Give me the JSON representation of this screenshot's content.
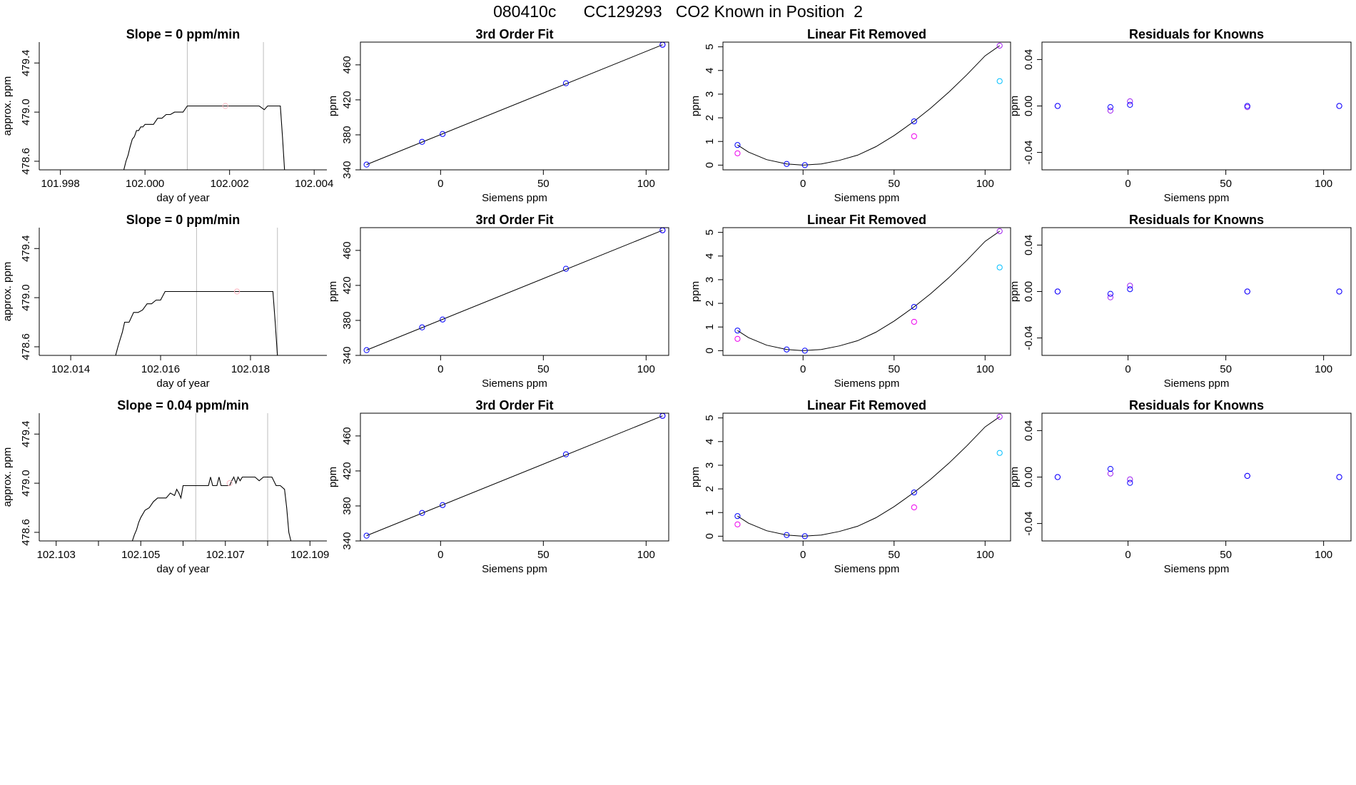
{
  "figure": {
    "title": "080410c      CC129293   CO2 Known in Position  2"
  },
  "colors": {
    "axis": "#000000",
    "trace": "#000000",
    "window_line": "#bebebe",
    "fit_line": "#000000",
    "known_point": "#0000ff",
    "residual_point": "#a020f0",
    "point_magenta": "#ee00ee",
    "point_cyan": "#00bfff",
    "mean_point_light": "#ffb6c1"
  },
  "chart_data": [
    {
      "type": "line",
      "row": 0,
      "col": 0,
      "title": "Slope =  0  ppm/min",
      "xlabel": "day of year",
      "ylabel": "approx. ppm",
      "xlim": [
        101.9975,
        102.0043
      ],
      "ylim": [
        478.53,
        479.57
      ],
      "xticks": [
        101.998,
        102.0,
        102.002,
        102.004
      ],
      "xtick_labels": [
        "101.998",
        "102.000",
        "102.002",
        "102.004"
      ],
      "yticks": [
        478.6,
        479.0,
        479.4
      ],
      "ytick_labels": [
        "478.6",
        "479.0",
        "479.4"
      ],
      "series": [
        {
          "x": [
            101.9995,
            101.99955,
            101.9996,
            101.99965,
            101.9997,
            101.99975,
            101.9998,
            101.99985,
            101.9999,
            101.99995,
            102.0,
            102.0001,
            102.0002,
            102.0003,
            102.0004,
            102.0005,
            102.0006,
            102.0007,
            102.0009,
            102.001,
            102.0011,
            102.002,
            102.0027,
            102.00282,
            102.0029,
            102.0032,
            102.00325,
            102.0033
          ],
          "y": [
            478.53,
            478.6,
            478.65,
            478.72,
            478.78,
            478.8,
            478.85,
            478.85,
            478.88,
            478.88,
            478.9,
            478.9,
            478.9,
            478.95,
            478.95,
            478.98,
            478.98,
            479.0,
            479.0,
            479.05,
            479.05,
            479.05,
            479.05,
            479.02,
            479.05,
            479.05,
            478.8,
            478.53
          ]
        }
      ],
      "vlines": [
        102.001,
        102.0028
      ],
      "mean_point": {
        "x": 102.0019,
        "y": 479.05
      }
    },
    {
      "type": "scatter",
      "row": 0,
      "col": 1,
      "title": "3rd Order Fit",
      "xlabel": "Siemens ppm",
      "ylabel": "ppm",
      "xlim": [
        -39,
        111
      ],
      "ylim": [
        340,
        486
      ],
      "xticks": [
        0,
        50,
        100
      ],
      "xtick_labels": [
        "0",
        "50",
        "100"
      ],
      "yticks": [
        340,
        380,
        420,
        460
      ],
      "ytick_labels": [
        "340",
        "380",
        "420",
        "460"
      ],
      "fit_line": {
        "x": [
          -36,
          108
        ],
        "y": [
          346,
          483
        ]
      },
      "known_points": {
        "x": [
          -36,
          -9,
          1,
          61,
          108
        ],
        "y": [
          346,
          372,
          381,
          439,
          483
        ]
      },
      "residual_points": {
        "x": [
          108
        ],
        "y": [
          483
        ]
      }
    },
    {
      "type": "scatter",
      "row": 0,
      "col": 2,
      "title": "Linear Fit Removed",
      "xlabel": "Siemens ppm",
      "ylabel": "ppm",
      "xlim": [
        -44,
        114
      ],
      "ylim": [
        -0.2,
        5.2
      ],
      "xticks": [
        0,
        50,
        100
      ],
      "xtick_labels": [
        "0",
        "50",
        "100"
      ],
      "yticks": [
        0,
        1,
        2,
        3,
        4,
        5
      ],
      "ytick_labels": [
        "0",
        "1",
        "2",
        "3",
        "4",
        "5"
      ],
      "fit_line": {
        "x": [
          -36,
          -30,
          -20,
          -9,
          0,
          10,
          20,
          30,
          40,
          50,
          61,
          70,
          80,
          90,
          100,
          108
        ],
        "y": [
          0.85,
          0.55,
          0.23,
          0.05,
          0.0,
          0.05,
          0.2,
          0.42,
          0.78,
          1.25,
          1.85,
          2.4,
          3.08,
          3.82,
          4.62,
          5.05
        ]
      },
      "known_points": {
        "x": [
          -36,
          -9,
          1,
          61
        ],
        "y": [
          0.85,
          0.05,
          0.0,
          1.85
        ]
      },
      "magenta_points": {
        "x": [
          -36,
          61
        ],
        "y": [
          0.5,
          1.22
        ]
      },
      "purple_points": {
        "x": [
          108
        ],
        "y": [
          5.05
        ]
      },
      "cyan_points": {
        "x": [
          108
        ],
        "y": [
          3.55
        ]
      }
    },
    {
      "type": "scatter",
      "row": 0,
      "col": 3,
      "title": "Residuals for Knowns",
      "xlabel": "Siemens ppm",
      "ylabel": "ppm",
      "xlim": [
        -44,
        114
      ],
      "ylim": [
        -0.055,
        0.055
      ],
      "xticks": [
        0,
        50,
        100
      ],
      "xtick_labels": [
        "0",
        "50",
        "100"
      ],
      "yticks": [
        -0.04,
        0.0,
        0.04
      ],
      "ytick_labels": [
        "-0.04",
        "0.00",
        "0.04"
      ],
      "known_points": {
        "x": [
          -36,
          -9,
          1,
          61,
          108
        ],
        "y": [
          0.0,
          -0.001,
          0.001,
          0.0,
          0.0
        ]
      },
      "residual_points": {
        "x": [
          -36,
          -9,
          1,
          61,
          108
        ],
        "y": [
          0.0,
          -0.004,
          0.004,
          -0.001,
          0.0
        ]
      }
    },
    {
      "type": "line",
      "row": 1,
      "col": 0,
      "title": "Slope =  0  ppm/min",
      "xlabel": "day of year",
      "ylabel": "approx. ppm",
      "xlim": [
        102.0133,
        102.0197
      ],
      "ylim": [
        478.53,
        479.57
      ],
      "xticks": [
        102.014,
        102.016,
        102.018
      ],
      "xtick_labels": [
        "102.014",
        "102.016",
        "102.018"
      ],
      "yticks": [
        478.6,
        479.0,
        479.4
      ],
      "ytick_labels": [
        "478.6",
        "479.0",
        "479.4"
      ],
      "series": [
        {
          "x": [
            102.015,
            102.01505,
            102.0151,
            102.01515,
            102.0152,
            102.0153,
            102.0154,
            102.0155,
            102.0156,
            102.0157,
            102.0158,
            102.0159,
            102.016,
            102.0161,
            102.0162,
            102.017,
            102.018,
            102.0185,
            102.01855,
            102.0186
          ],
          "y": [
            478.53,
            478.6,
            478.66,
            478.72,
            478.8,
            478.8,
            478.88,
            478.88,
            478.9,
            478.95,
            478.95,
            478.98,
            478.98,
            479.05,
            479.05,
            479.05,
            479.05,
            479.05,
            478.8,
            478.53
          ]
        }
      ],
      "vlines": [
        102.0168,
        102.0186
      ],
      "mean_point": {
        "x": 102.0177,
        "y": 479.05
      }
    },
    {
      "type": "scatter",
      "row": 1,
      "col": 1,
      "title": "3rd Order Fit",
      "xlabel": "Siemens ppm",
      "ylabel": "ppm",
      "xlim": [
        -39,
        111
      ],
      "ylim": [
        340,
        486
      ],
      "xticks": [
        0,
        50,
        100
      ],
      "xtick_labels": [
        "0",
        "50",
        "100"
      ],
      "yticks": [
        340,
        380,
        420,
        460
      ],
      "ytick_labels": [
        "340",
        "380",
        "420",
        "460"
      ],
      "fit_line": {
        "x": [
          -36,
          108
        ],
        "y": [
          346,
          483
        ]
      },
      "known_points": {
        "x": [
          -36,
          -9,
          1,
          61,
          108
        ],
        "y": [
          346,
          372,
          381,
          439,
          483
        ]
      },
      "residual_points": {
        "x": [
          108
        ],
        "y": [
          483
        ]
      }
    },
    {
      "type": "scatter",
      "row": 1,
      "col": 2,
      "title": "Linear Fit Removed",
      "xlabel": "Siemens ppm",
      "ylabel": "ppm",
      "xlim": [
        -44,
        114
      ],
      "ylim": [
        -0.2,
        5.2
      ],
      "xticks": [
        0,
        50,
        100
      ],
      "xtick_labels": [
        "0",
        "50",
        "100"
      ],
      "yticks": [
        0,
        1,
        2,
        3,
        4,
        5
      ],
      "ytick_labels": [
        "0",
        "1",
        "2",
        "3",
        "4",
        "5"
      ],
      "fit_line": {
        "x": [
          -36,
          -30,
          -20,
          -9,
          0,
          10,
          20,
          30,
          40,
          50,
          61,
          70,
          80,
          90,
          100,
          108
        ],
        "y": [
          0.85,
          0.55,
          0.23,
          0.05,
          0.0,
          0.05,
          0.2,
          0.42,
          0.78,
          1.25,
          1.85,
          2.4,
          3.08,
          3.82,
          4.62,
          5.05
        ]
      },
      "known_points": {
        "x": [
          -36,
          -9,
          1,
          61
        ],
        "y": [
          0.85,
          0.05,
          0.0,
          1.85
        ]
      },
      "magenta_points": {
        "x": [
          -36,
          61
        ],
        "y": [
          0.5,
          1.22
        ]
      },
      "purple_points": {
        "x": [
          108
        ],
        "y": [
          5.05
        ]
      },
      "cyan_points": {
        "x": [
          108
        ],
        "y": [
          3.52
        ]
      }
    },
    {
      "type": "scatter",
      "row": 1,
      "col": 3,
      "title": "Residuals for Knowns",
      "xlabel": "Siemens ppm",
      "ylabel": "ppm",
      "xlim": [
        -44,
        114
      ],
      "ylim": [
        -0.055,
        0.055
      ],
      "xticks": [
        0,
        50,
        100
      ],
      "xtick_labels": [
        "0",
        "50",
        "100"
      ],
      "yticks": [
        -0.04,
        0.0,
        0.04
      ],
      "ytick_labels": [
        "-0.04",
        "0.00",
        "0.04"
      ],
      "known_points": {
        "x": [
          -36,
          -9,
          1,
          61,
          108
        ],
        "y": [
          0.0,
          -0.002,
          0.002,
          0.0,
          0.0
        ]
      },
      "residual_points": {
        "x": [
          -36,
          -9,
          1,
          61,
          108
        ],
        "y": [
          0.0,
          -0.005,
          0.005,
          0.0,
          0.0
        ]
      }
    },
    {
      "type": "line",
      "row": 2,
      "col": 0,
      "title": "Slope =  0.04  ppm/min",
      "xlabel": "day of year",
      "ylabel": "approx. ppm",
      "xlim": [
        102.1026,
        102.1094
      ],
      "ylim": [
        478.53,
        479.57
      ],
      "xticks": [
        102.103,
        102.104,
        102.105,
        102.106,
        102.107,
        102.108,
        102.109
      ],
      "xtick_labels": [
        "102.103",
        "",
        "102.105",
        "",
        "102.107",
        "",
        "102.109"
      ],
      "yticks": [
        478.6,
        479.0,
        479.4
      ],
      "ytick_labels": [
        "478.6",
        "479.0",
        "479.4"
      ],
      "series": [
        {
          "x": [
            102.1048,
            102.10485,
            102.1049,
            102.10495,
            102.105,
            102.1051,
            102.1052,
            102.1053,
            102.1054,
            102.1055,
            102.1056,
            102.1057,
            102.1058,
            102.10585,
            102.1059,
            102.10595,
            102.106,
            102.1061,
            102.1062,
            102.1063,
            102.1064,
            102.1065,
            102.1066,
            102.10665,
            102.1067,
            102.1068,
            102.10685,
            102.1069,
            102.107,
            102.1071,
            102.10715,
            102.1072,
            102.10725,
            102.1073,
            102.10735,
            102.1074,
            102.10745,
            102.1075,
            102.1076,
            102.1077,
            102.1078,
            102.1079,
            102.108,
            102.10805,
            102.1081,
            102.1082,
            102.1083,
            102.1084,
            102.10845,
            102.1085,
            102.10855
          ],
          "y": [
            478.53,
            478.58,
            478.62,
            478.68,
            478.72,
            478.78,
            478.8,
            478.85,
            478.88,
            478.88,
            478.88,
            478.92,
            478.9,
            478.95,
            478.92,
            478.88,
            478.98,
            478.98,
            478.98,
            478.98,
            478.98,
            478.98,
            478.98,
            479.05,
            478.98,
            478.98,
            479.05,
            478.98,
            478.98,
            478.98,
            479.02,
            479.05,
            479.0,
            479.05,
            479.02,
            479.05,
            479.05,
            479.05,
            479.05,
            479.05,
            479.02,
            479.05,
            479.05,
            479.05,
            479.05,
            478.98,
            478.98,
            478.95,
            478.8,
            478.6,
            478.53
          ]
        }
      ],
      "vlines": [
        102.1063,
        102.108
      ],
      "mean_point": {
        "x": 102.1071,
        "y": 479.0
      }
    },
    {
      "type": "scatter",
      "row": 2,
      "col": 1,
      "title": "3rd Order Fit",
      "xlabel": "Siemens ppm",
      "ylabel": "ppm",
      "xlim": [
        -39,
        111
      ],
      "ylim": [
        340,
        486
      ],
      "xticks": [
        0,
        50,
        100
      ],
      "xtick_labels": [
        "0",
        "50",
        "100"
      ],
      "yticks": [
        340,
        380,
        420,
        460
      ],
      "ytick_labels": [
        "340",
        "380",
        "420",
        "460"
      ],
      "fit_line": {
        "x": [
          -36,
          108
        ],
        "y": [
          346,
          483
        ]
      },
      "known_points": {
        "x": [
          -36,
          -9,
          1,
          61,
          108
        ],
        "y": [
          346,
          372,
          381,
          439,
          483
        ]
      },
      "residual_points": {
        "x": [
          108
        ],
        "y": [
          483
        ]
      }
    },
    {
      "type": "scatter",
      "row": 2,
      "col": 2,
      "title": "Linear Fit Removed",
      "xlabel": "Siemens ppm",
      "ylabel": "ppm",
      "xlim": [
        -44,
        114
      ],
      "ylim": [
        -0.2,
        5.2
      ],
      "xticks": [
        0,
        50,
        100
      ],
      "xtick_labels": [
        "0",
        "50",
        "100"
      ],
      "yticks": [
        0,
        1,
        2,
        3,
        4,
        5
      ],
      "ytick_labels": [
        "0",
        "1",
        "2",
        "3",
        "4",
        "5"
      ],
      "fit_line": {
        "x": [
          -36,
          -30,
          -20,
          -9,
          0,
          10,
          20,
          30,
          40,
          50,
          61,
          70,
          80,
          90,
          100,
          108
        ],
        "y": [
          0.85,
          0.55,
          0.23,
          0.05,
          0.0,
          0.05,
          0.2,
          0.42,
          0.78,
          1.25,
          1.85,
          2.4,
          3.08,
          3.82,
          4.62,
          5.05
        ]
      },
      "known_points": {
        "x": [
          -36,
          -9,
          1,
          61
        ],
        "y": [
          0.85,
          0.05,
          0.0,
          1.85
        ]
      },
      "magenta_points": {
        "x": [
          -36,
          61
        ],
        "y": [
          0.5,
          1.22
        ]
      },
      "purple_points": {
        "x": [
          108
        ],
        "y": [
          5.05
        ]
      },
      "cyan_points": {
        "x": [
          108
        ],
        "y": [
          3.52
        ]
      }
    },
    {
      "type": "scatter",
      "row": 2,
      "col": 3,
      "title": "Residuals for Knowns",
      "xlabel": "Siemens ppm",
      "ylabel": "ppm",
      "xlim": [
        -44,
        114
      ],
      "ylim": [
        -0.055,
        0.055
      ],
      "xticks": [
        0,
        50,
        100
      ],
      "xtick_labels": [
        "0",
        "50",
        "100"
      ],
      "yticks": [
        -0.04,
        0.0,
        0.04
      ],
      "ytick_labels": [
        "-0.04",
        "0.00",
        "0.04"
      ],
      "known_points": {
        "x": [
          -36,
          -9,
          1,
          61,
          108
        ],
        "y": [
          0.0,
          0.007,
          -0.005,
          0.001,
          0.0
        ]
      },
      "residual_points": {
        "x": [
          -36,
          -9,
          1,
          61,
          108
        ],
        "y": [
          0.0,
          0.003,
          -0.002,
          0.001,
          0.0
        ]
      }
    }
  ]
}
